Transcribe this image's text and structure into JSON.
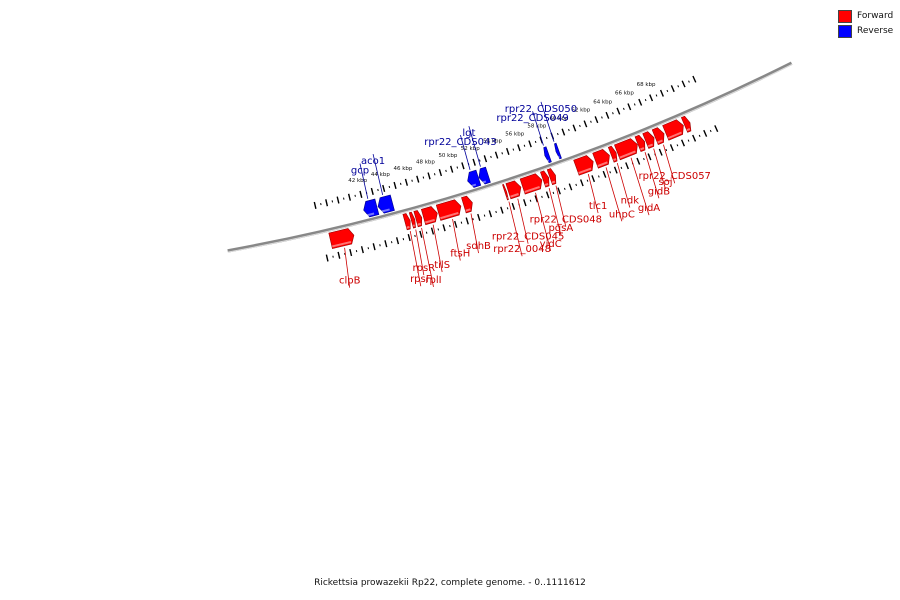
{
  "legend": {
    "forward": {
      "label": "Forward",
      "color": "#ff0000"
    },
    "reverse": {
      "label": "Reverse",
      "color": "#0000ff"
    }
  },
  "caption": "Rickettsia prowazekii Rp22, complete genome. - 0..1111612",
  "colors": {
    "backbone": "#888888",
    "tick": "#000000",
    "forward_label": "#cc0000",
    "reverse_label": "#000099"
  },
  "axis": {
    "unit": "kbp",
    "ticks": [
      {
        "label": "42 kbp",
        "kb": 42
      },
      {
        "label": "44 kbp",
        "kb": 44
      },
      {
        "label": "46 kbp",
        "kb": 46
      },
      {
        "label": "48 kbp",
        "kb": 48
      },
      {
        "label": "50 kbp",
        "kb": 50
      },
      {
        "label": "52 kbp",
        "kb": 52
      },
      {
        "label": "54 kbp",
        "kb": 54
      },
      {
        "label": "56 kbp",
        "kb": 56
      },
      {
        "label": "58 kbp",
        "kb": 58
      },
      {
        "label": "60 kbp",
        "kb": 60
      },
      {
        "label": "62 kbp",
        "kb": 62
      },
      {
        "label": "64 kbp",
        "kb": 64
      },
      {
        "label": "66 kbp",
        "kb": 66
      },
      {
        "label": "68 kbp",
        "kb": 68
      }
    ]
  },
  "genes": {
    "forward": [
      {
        "name": "clpB",
        "start_kb": 38.6,
        "end_kb": 40.6
      },
      {
        "name": "rpsF",
        "start_kb": 45.0,
        "end_kb": 45.45
      },
      {
        "name": "rpsR",
        "start_kb": 45.55,
        "end_kb": 45.85
      },
      {
        "name": "rplI",
        "start_kb": 45.95,
        "end_kb": 46.45
      },
      {
        "name": "tilS",
        "start_kb": 46.6,
        "end_kb": 47.8
      },
      {
        "name": "ftsH",
        "start_kb": 47.9,
        "end_kb": 49.85
      },
      {
        "name": "sdhB",
        "start_kb": 50.1,
        "end_kb": 50.85
      },
      {
        "name": "rpr22_0048",
        "start_kb": 53.7,
        "end_kb": 53.85
      },
      {
        "name": "rpr22_CDS045",
        "start_kb": 54.0,
        "end_kb": 55.1
      },
      {
        "name": "yidC",
        "start_kb": 55.25,
        "end_kb": 56.95
      },
      {
        "name": "pgsA",
        "start_kb": 57.05,
        "end_kb": 57.55
      },
      {
        "name": "rpr22_CDS048",
        "start_kb": 57.65,
        "end_kb": 58.15
      },
      {
        "name": "tlc1",
        "start_kb": 60.0,
        "end_kb": 61.5
      },
      {
        "name": "uhpC",
        "start_kb": 61.7,
        "end_kb": 62.95
      },
      {
        "name": "ndk",
        "start_kb": 63.1,
        "end_kb": 63.55
      },
      {
        "name": "gidA",
        "start_kb": 63.65,
        "end_kb": 65.45
      },
      {
        "name": "gidB",
        "start_kb": 65.5,
        "end_kb": 66.1
      },
      {
        "name": "soj",
        "start_kb": 66.2,
        "end_kb": 66.95
      },
      {
        "name": "rpr22_CDS057",
        "start_kb": 67.05,
        "end_kb": 67.85
      },
      {
        "name": "",
        "start_kb": 68.0,
        "end_kb": 69.6
      },
      {
        "name": "",
        "start_kb": 69.7,
        "end_kb": 70.2
      }
    ],
    "reverse": [
      {
        "name": "gcp",
        "start_kb": 41.9,
        "end_kb": 43.05
      },
      {
        "name": "aco1",
        "start_kb": 43.15,
        "end_kb": 44.4
      },
      {
        "name": "rpr22_CDS043",
        "start_kb": 51.0,
        "end_kb": 51.95
      },
      {
        "name": "lgt",
        "start_kb": 52.0,
        "end_kb": 52.8
      },
      {
        "name": "rpr22_CDS049",
        "start_kb": 57.85,
        "end_kb": 58.2
      },
      {
        "name": "rpr22_CDS050",
        "start_kb": 58.85,
        "end_kb": 59.1
      }
    ]
  }
}
